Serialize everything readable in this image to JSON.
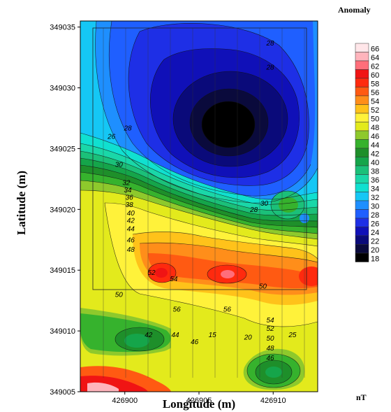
{
  "chart_data": {
    "type": "heatmap",
    "subtype": "filled-contour-map",
    "xlabel": "Longitude (m)",
    "ylabel": "Latitude (m)",
    "x_ticks": [
      426900,
      426905,
      426910
    ],
    "y_ticks": [
      349005,
      349010,
      349015,
      349020,
      349025,
      349030,
      349035
    ],
    "xlim": [
      426897,
      426913
    ],
    "ylim": [
      349005,
      349035.5
    ],
    "legend": {
      "title": "Anomaly",
      "unit": "nT",
      "levels": [
        18,
        20,
        22,
        24,
        26,
        28,
        30,
        32,
        34,
        36,
        38,
        40,
        42,
        44,
        46,
        48,
        50,
        52,
        54,
        56,
        58,
        60,
        62,
        64,
        66
      ],
      "colors": [
        "#000000",
        "#0a0a3c",
        "#0a0a7a",
        "#1010b8",
        "#1e2fe6",
        "#1f5fff",
        "#1e8fff",
        "#15c7f5",
        "#10e0d0",
        "#1ad7a8",
        "#1bc079",
        "#15a54a",
        "#1e8f2a",
        "#36b22d",
        "#8ec92c",
        "#e3ea1c",
        "#fff23a",
        "#ffc21a",
        "#ff8e1a",
        "#ff5a12",
        "#ff2a0e",
        "#f01414",
        "#ff6e7a",
        "#ffb4bc",
        "#ffe6e9"
      ],
      "position": "right"
    },
    "contour_labels": [
      {
        "text": "28",
        "x": 426909.8,
        "y": 349033.5
      },
      {
        "text": "28",
        "x": 426909.8,
        "y": 349031.5
      },
      {
        "text": "28",
        "x": 426900.2,
        "y": 349026.5
      },
      {
        "text": "26",
        "x": 426899.1,
        "y": 349025.8
      },
      {
        "text": "30",
        "x": 426899.6,
        "y": 349023.5
      },
      {
        "text": "32",
        "x": 426900.1,
        "y": 349022.0
      },
      {
        "text": "34",
        "x": 426900.2,
        "y": 349021.4
      },
      {
        "text": "36",
        "x": 426900.3,
        "y": 349020.8
      },
      {
        "text": "38",
        "x": 426900.3,
        "y": 349020.2
      },
      {
        "text": "40",
        "x": 426900.4,
        "y": 349019.5
      },
      {
        "text": "42",
        "x": 426900.4,
        "y": 349018.9
      },
      {
        "text": "44",
        "x": 426900.4,
        "y": 349018.2
      },
      {
        "text": "46",
        "x": 426900.4,
        "y": 349017.3
      },
      {
        "text": "48",
        "x": 426900.4,
        "y": 349016.5
      },
      {
        "text": "28",
        "x": 426908.7,
        "y": 349019.8
      },
      {
        "text": "30",
        "x": 426909.4,
        "y": 349020.3
      },
      {
        "text": "52",
        "x": 426901.8,
        "y": 349014.6
      },
      {
        "text": "54",
        "x": 426903.3,
        "y": 349014.1
      },
      {
        "text": "50",
        "x": 426899.6,
        "y": 349012.8
      },
      {
        "text": "50",
        "x": 426909.3,
        "y": 349013.5
      },
      {
        "text": "56",
        "x": 426903.5,
        "y": 349011.6
      },
      {
        "text": "56",
        "x": 426906.9,
        "y": 349011.6
      },
      {
        "text": "54",
        "x": 426909.8,
        "y": 349010.7
      },
      {
        "text": "52",
        "x": 426909.8,
        "y": 349010.0
      },
      {
        "text": "50",
        "x": 426909.8,
        "y": 349009.2
      },
      {
        "text": "48",
        "x": 426909.8,
        "y": 349008.4
      },
      {
        "text": "46",
        "x": 426909.8,
        "y": 349007.6
      },
      {
        "text": "42",
        "x": 426901.6,
        "y": 349009.5
      },
      {
        "text": "44",
        "x": 426903.4,
        "y": 349009.5
      },
      {
        "text": "46",
        "x": 426904.7,
        "y": 349008.9
      },
      {
        "text": "15",
        "x": 426905.9,
        "y": 349009.5
      },
      {
        "text": "20",
        "x": 426908.3,
        "y": 349009.3
      },
      {
        "text": "25",
        "x": 426911.3,
        "y": 349009.5
      }
    ]
  }
}
